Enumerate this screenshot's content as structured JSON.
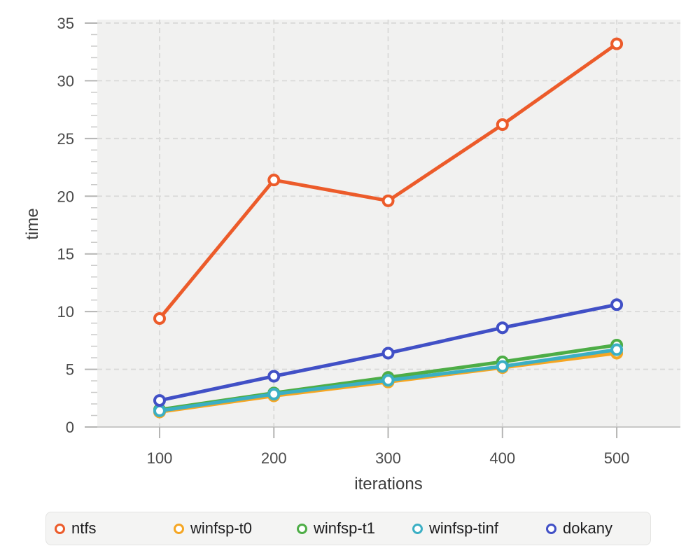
{
  "chart_data": {
    "type": "line",
    "title": "",
    "xlabel": "iterations",
    "ylabel": "time",
    "x": [
      100,
      200,
      300,
      400,
      500
    ],
    "xticks": [
      100,
      200,
      300,
      400,
      500
    ],
    "yticks": [
      0,
      5,
      10,
      15,
      20,
      25,
      30,
      35
    ],
    "xlim": [
      45.5,
      555.7
    ],
    "ylim": [
      0,
      35.3
    ],
    "y_minor_tick_step": 1,
    "grid": "dashed",
    "legend_position": "bottom",
    "marker": "open-circle",
    "panel_background": "#f1f1f0",
    "grid_color": "#d9d9d8",
    "tick_color": "#b5b5b4",
    "axis_line_color": "#c8c8c7",
    "tick_label_color": "#4a4a4a",
    "series": [
      {
        "name": "ntfs",
        "color": "#ec5b2a",
        "values": [
          9.4,
          21.4,
          19.6,
          26.2,
          33.2
        ]
      },
      {
        "name": "winfsp-t0",
        "color": "#f5a623",
        "values": [
          1.3,
          2.7,
          3.9,
          5.15,
          6.4
        ]
      },
      {
        "name": "winfsp-t1",
        "color": "#4dad46",
        "values": [
          1.5,
          2.95,
          4.3,
          5.65,
          7.1
        ]
      },
      {
        "name": "winfsp-tinf",
        "color": "#3bafc4",
        "values": [
          1.4,
          2.85,
          4.05,
          5.25,
          6.7
        ]
      },
      {
        "name": "dokany",
        "color": "#4150c6",
        "values": [
          2.3,
          4.4,
          6.4,
          8.6,
          10.6
        ]
      }
    ]
  }
}
